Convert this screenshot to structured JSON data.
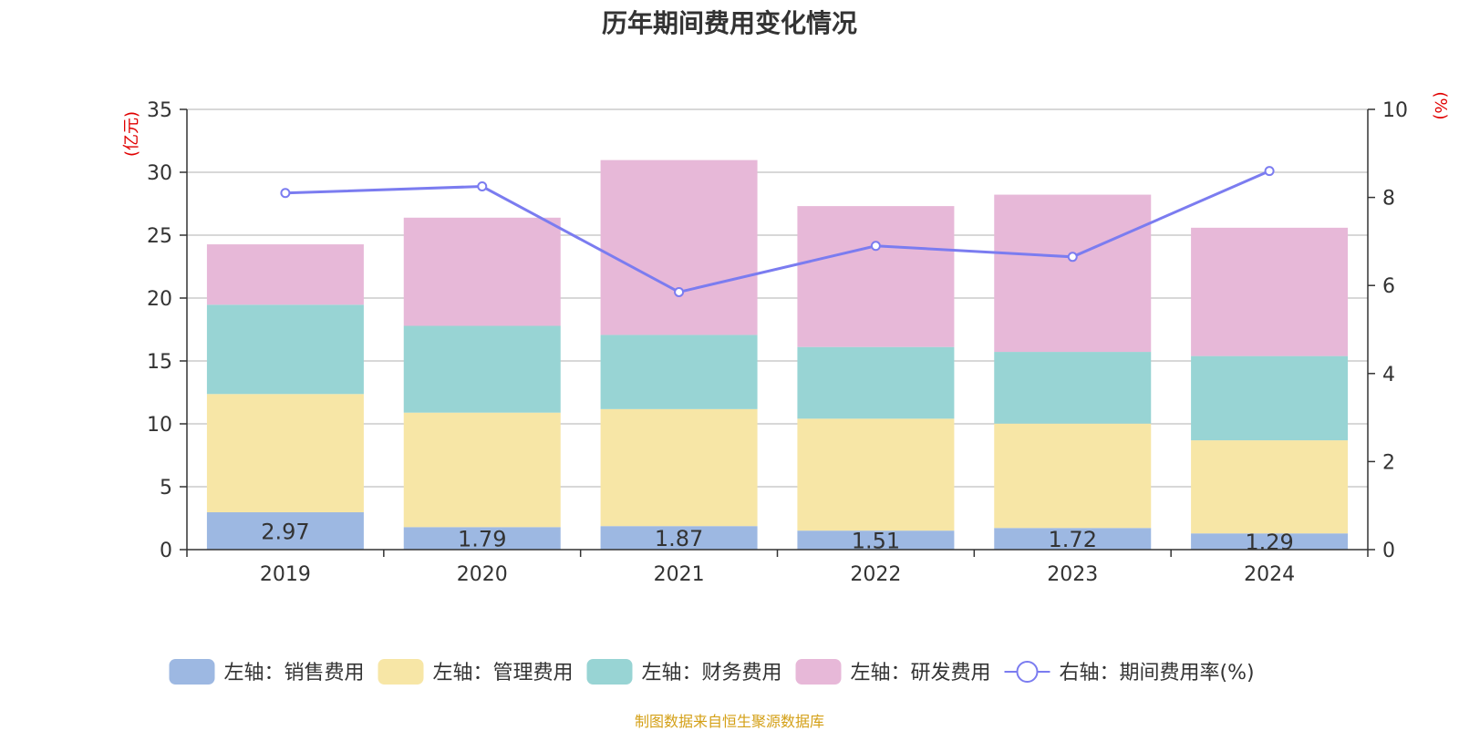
{
  "title": "历年期间费用变化情况",
  "source_note": "制图数据来自恒生聚源数据库",
  "colors": {
    "sales": "#9db8e2",
    "admin": "#f7e6a6",
    "finance": "#98d4d4",
    "rnd": "#e7b8d8",
    "rate_line": "#7b7cf0",
    "axis_unit": "#e00000",
    "grid": "#cccccc",
    "axis": "#333333"
  },
  "chart_data": {
    "type": "bar",
    "stacked": true,
    "categories": [
      "2019",
      "2020",
      "2021",
      "2022",
      "2023",
      "2024"
    ],
    "series": [
      {
        "key": "sales",
        "name": "左轴：销售费用",
        "axis": "left",
        "values": [
          2.97,
          1.79,
          1.87,
          1.51,
          1.72,
          1.29
        ],
        "show_labels": true
      },
      {
        "key": "admin",
        "name": "左轴：管理费用",
        "axis": "left",
        "values": [
          9.4,
          9.1,
          9.3,
          8.9,
          8.3,
          7.4
        ]
      },
      {
        "key": "finance",
        "name": "左轴：财务费用",
        "axis": "left",
        "values": [
          7.1,
          6.9,
          5.9,
          5.7,
          5.7,
          6.7
        ]
      },
      {
        "key": "rnd",
        "name": "左轴：研发费用",
        "axis": "left",
        "values": [
          4.8,
          8.6,
          13.9,
          11.2,
          12.5,
          10.2
        ]
      }
    ],
    "line_series": {
      "key": "rate_line",
      "name": "右轴：期间费用率(%)",
      "axis": "right",
      "type": "line",
      "values": [
        8.1,
        8.25,
        5.85,
        6.9,
        6.65,
        8.6
      ]
    },
    "y_left": {
      "label": "(亿元)",
      "min": 0,
      "max": 35,
      "ticks": [
        0,
        5,
        10,
        15,
        20,
        25,
        30,
        35
      ]
    },
    "y_right": {
      "label": "(%)",
      "min": 0,
      "max": 10,
      "ticks": [
        0,
        2,
        4,
        6,
        8,
        10
      ]
    },
    "grid": true,
    "legend_position": "bottom"
  }
}
